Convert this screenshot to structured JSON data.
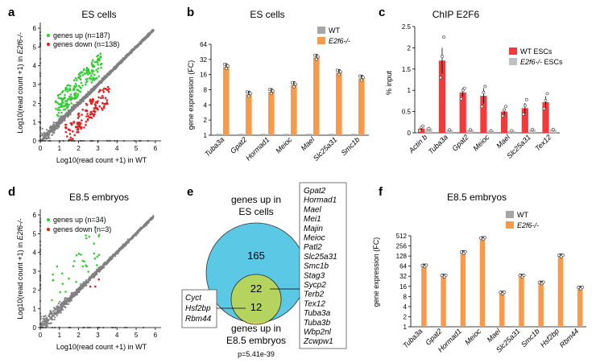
{
  "colors": {
    "wt": "#a6a6a6",
    "ko": "#f79a4c",
    "chip_wt": "#f23a3a",
    "chip_ko": "#c0c0c0",
    "up": "#33cc33",
    "down": "#e02020",
    "scatter": "#808080",
    "venn_es": "#5bc8e6",
    "venn_e85": "#f2d34e",
    "venn_overlap": "#b5d45f"
  },
  "panels": {
    "a": "a",
    "b": "b",
    "c": "c",
    "d": "d",
    "e": "e",
    "f": "f"
  },
  "scatter_a": {
    "title": "ES cells",
    "ylabel_pre": "Log10(read count +1) in ",
    "ylabel_it": "E2f6-/-",
    "xlabel": "Log10(read count +1) in WT",
    "legend_up": "genes up (n=187)",
    "legend_down": "genes down (n=138)",
    "ticks": [
      "0",
      "1",
      "2",
      "3",
      "4",
      "5",
      "6"
    ]
  },
  "scatter_d": {
    "title": "E8.5 embryos",
    "ylabel_pre": "Log10(read count +1) in ",
    "ylabel_it": "E2f6-/-",
    "xlabel": "Log10(read count +1) in WT",
    "legend_up": "genes up (n=34)",
    "legend_down": "genes down (n=3)",
    "ticks": [
      "0",
      "1",
      "2",
      "3",
      "4",
      "5",
      "6"
    ]
  },
  "bar_b_text": {
    "title": "ES cells",
    "ylabel": "gene expression (FC)",
    "legend_wt": "WT",
    "legend_ko": "E2f6-/-",
    "yticks": [
      "1",
      "2",
      "4",
      "8",
      "16",
      "32",
      "64"
    ]
  },
  "chip_text": {
    "title": "ChIP E2F6",
    "ylabel": "% input",
    "legend_wt": "WT ESCs",
    "legend_ko_it": "E2f6-/-",
    "legend_ko_rest": " ESCs",
    "yticks": [
      "0",
      "0.5",
      "1",
      "1.5",
      "2",
      "2.5"
    ]
  },
  "bar_f_text": {
    "title": "E8.5 embryos",
    "ylabel": "gene expression (FC)",
    "legend_wt": "WT",
    "legend_ko": "E2f6-/-",
    "yticks": [
      "1",
      "2",
      "4",
      "8",
      "16",
      "32",
      "64",
      "128",
      "256",
      "512"
    ]
  },
  "venn": {
    "top_label": "genes up in",
    "top_label2": "ES cells",
    "bottom_label": "genes up in",
    "bottom_label2": "E8.5 embryos",
    "es_only": "165",
    "overlap": "22",
    "e85_only": "12",
    "pvalue": "p=5.41e-39",
    "left_genes": [
      "Cyct",
      "Hsf2bp",
      "Rbm44"
    ],
    "right_genes": [
      "Gpat2",
      "Hormad1",
      "Mael",
      "Mei1",
      "Majin",
      "Meioc",
      "Patl2",
      "Slc25a31",
      "Smc1b",
      "Stag3",
      "Sycp2",
      "Terb2",
      "Tex12",
      "Tuba3a",
      "Tuba3b",
      "Wbp2nl",
      "Zcwpw1"
    ]
  },
  "chart_data": [
    {
      "type": "scatter",
      "panel": "a",
      "title": "ES cells",
      "xlabel": "Log10(read count +1) in WT",
      "ylabel": "Log10(read count +1) in E2f6-/-",
      "xlim": [
        0,
        6.3
      ],
      "ylim": [
        0,
        6.3
      ],
      "series": [
        {
          "name": "genes up (n=187)",
          "n": 187
        },
        {
          "name": "genes down (n=138)",
          "n": 138
        }
      ]
    },
    {
      "type": "bar",
      "panel": "b",
      "title": "ES cells",
      "ylabel": "gene expression (FC)",
      "log2": true,
      "ylim": [
        1,
        64
      ],
      "categories": [
        "Tuba3a",
        "Gpat2",
        "Hormad1",
        "Meioc",
        "Mael",
        "Slc25a31",
        "Smc1b"
      ],
      "series": [
        {
          "name": "WT",
          "values": [
            1,
            1,
            1,
            1,
            1,
            1,
            1
          ]
        },
        {
          "name": "E2f6-/-",
          "values": [
            23,
            6.5,
            7.3,
            10,
            35,
            17.5,
            13.5
          ]
        }
      ]
    },
    {
      "type": "bar",
      "panel": "c",
      "title": "ChIP E2F6",
      "ylabel": "% input",
      "ylim": [
        0,
        2.5
      ],
      "categories": [
        "Actin b",
        "Tuba3a",
        "Gpat2",
        "Meioc",
        "Mael",
        "Slc25a31",
        "Tex12"
      ],
      "series": [
        {
          "name": "WT ESCs",
          "values": [
            0.1,
            1.7,
            0.95,
            0.87,
            0.5,
            0.58,
            0.72
          ]
        },
        {
          "name": "E2f6-/- ESCs",
          "values": [
            0.1,
            0.07,
            0.07,
            0.05,
            0.05,
            0.08,
            0.08
          ]
        }
      ]
    },
    {
      "type": "scatter",
      "panel": "d",
      "title": "E8.5 embryos",
      "xlabel": "Log10(read count +1) in WT",
      "ylabel": "Log10(read count +1) in E2f6-/-",
      "xlim": [
        0,
        6.3
      ],
      "ylim": [
        0,
        6.3
      ],
      "series": [
        {
          "name": "genes up (n=34)",
          "n": 34
        },
        {
          "name": "genes down (n=3)",
          "n": 3
        }
      ]
    },
    {
      "type": "bar",
      "panel": "f",
      "title": "E8.5 embryos",
      "ylabel": "gene expression (FC)",
      "log2": true,
      "ylim": [
        1,
        512
      ],
      "categories": [
        "Tuba3a",
        "Gpat2",
        "Hormad1",
        "Meioc",
        "Mael",
        "Slc25a31",
        "Smc1b",
        "Hsf2bp",
        "Rbm44"
      ],
      "series": [
        {
          "name": "WT",
          "values": [
            1,
            1,
            1,
            1,
            1,
            1,
            1,
            1,
            1
          ]
        },
        {
          "name": "E2f6-/-",
          "values": [
            64,
            32,
            160,
            420,
            10,
            32,
            20,
            128,
            14
          ]
        }
      ]
    }
  ]
}
